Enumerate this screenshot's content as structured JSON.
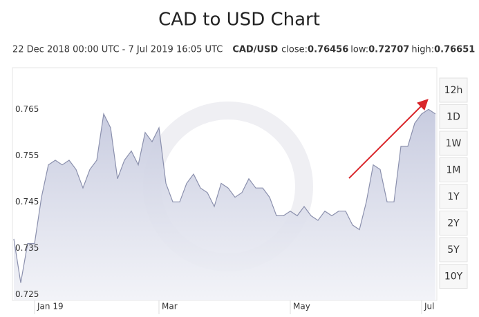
{
  "chart_data": {
    "type": "area",
    "title": "CAD to USD Chart",
    "subtitle": "22 Dec 2018 00:00 UTC - 7 Jul 2019 16:05 UTC",
    "pair": "CAD/USD",
    "stats": [
      {
        "label": "close:",
        "value": 0.76456
      },
      {
        "label": "low:",
        "value": 0.72707
      },
      {
        "label": "high:",
        "value": 0.76651
      }
    ],
    "categories": [
      null,
      null,
      null,
      "Jan 19",
      null,
      null,
      null,
      null,
      null,
      null,
      null,
      null,
      null,
      null,
      null,
      null,
      null,
      null,
      null,
      null,
      null,
      "Mar",
      null,
      null,
      null,
      null,
      null,
      null,
      null,
      null,
      null,
      null,
      null,
      null,
      null,
      null,
      null,
      null,
      null,
      null,
      "May",
      null,
      null,
      null,
      null,
      null,
      null,
      null,
      null,
      null,
      null,
      null,
      null,
      null,
      null,
      null,
      null,
      null,
      null,
      "Jul",
      null,
      null
    ],
    "values": [
      0.737,
      0.7275,
      0.736,
      0.736,
      0.746,
      0.753,
      0.754,
      0.753,
      0.754,
      0.752,
      0.748,
      0.752,
      0.754,
      0.764,
      0.761,
      0.75,
      0.754,
      0.756,
      0.753,
      0.76,
      0.758,
      0.761,
      0.749,
      0.745,
      0.745,
      0.749,
      0.751,
      0.748,
      0.747,
      0.744,
      0.749,
      0.748,
      0.746,
      0.747,
      0.75,
      0.748,
      0.748,
      0.746,
      0.742,
      0.742,
      0.743,
      0.742,
      0.744,
      0.742,
      0.741,
      0.743,
      0.742,
      0.743,
      0.743,
      0.74,
      0.739,
      0.745,
      0.753,
      0.752,
      0.745,
      0.745,
      0.757,
      0.757,
      0.762,
      0.764,
      0.765,
      0.764
    ],
    "color": "#8b90ad",
    "fill": "#cdd0e2",
    "ylim": [
      0.7237,
      0.774
    ],
    "yticks": [
      0.725,
      0.735,
      0.745,
      0.755,
      0.765
    ],
    "grid": false,
    "range_buttons": [
      "12h",
      "1D",
      "1W",
      "1M",
      "1Y",
      "2Y",
      "5Y",
      "10Y"
    ]
  }
}
